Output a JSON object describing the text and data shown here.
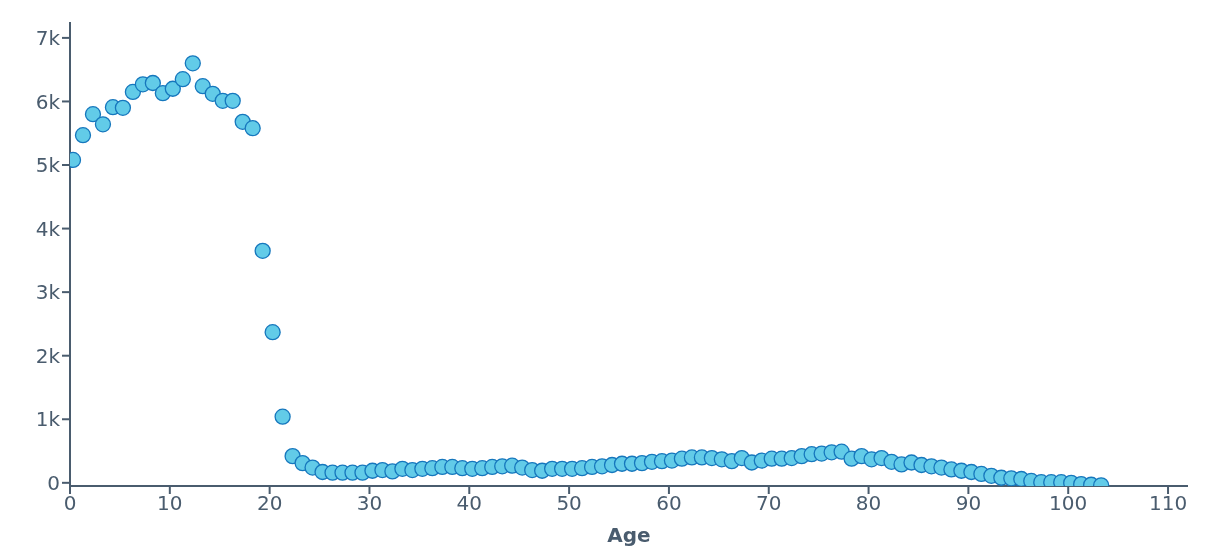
{
  "chart_data": {
    "type": "scatter",
    "xlabel": "Age",
    "color": "#62cbe8",
    "marker": "circle",
    "grid": false,
    "legend": false,
    "x": [
      0.3,
      1.3,
      2.3,
      3.3,
      4.3,
      5.3,
      6.3,
      7.3,
      8.3,
      9.3,
      10.3,
      11.3,
      12.3,
      13.3,
      14.3,
      15.3,
      16.3,
      17.3,
      18.3,
      19.3,
      20.3,
      21.3,
      22.3,
      23.3,
      24.3,
      25.3,
      26.3,
      27.3,
      28.3,
      29.3,
      30.3,
      31.3,
      32.3,
      33.3,
      34.3,
      35.3,
      36.3,
      37.3,
      38.3,
      39.3,
      40.3,
      41.3,
      42.3,
      43.3,
      44.3,
      45.3,
      46.3,
      47.3,
      48.3,
      49.3,
      50.3,
      51.3,
      52.3,
      53.3,
      54.3,
      55.3,
      56.3,
      57.3,
      58.3,
      59.3,
      60.3,
      61.3,
      62.3,
      63.3,
      64.3,
      65.3,
      66.3,
      67.3,
      68.3,
      69.3,
      70.3,
      71.3,
      72.3,
      73.3,
      74.3,
      75.3,
      76.3,
      77.3,
      78.3,
      79.3,
      80.3,
      81.3,
      82.3,
      83.3,
      84.3,
      85.3,
      86.3,
      87.3,
      88.3,
      89.3,
      90.3,
      91.3,
      92.3,
      93.3,
      94.3,
      95.3,
      96.3,
      97.3,
      98.3,
      99.3,
      100.3,
      101.3,
      102.3,
      103.3
    ],
    "values": [
      5080,
      5470,
      5800,
      5640,
      5910,
      5900,
      6150,
      6270,
      6290,
      6130,
      6200,
      6350,
      6600,
      6240,
      6120,
      6010,
      6010,
      5680,
      5580,
      3650,
      2370,
      1040,
      420,
      310,
      240,
      170,
      160,
      160,
      160,
      160,
      190,
      200,
      180,
      220,
      200,
      220,
      230,
      250,
      250,
      230,
      220,
      230,
      250,
      260,
      270,
      240,
      200,
      190,
      220,
      220,
      220,
      230,
      250,
      260,
      280,
      300,
      300,
      310,
      330,
      340,
      350,
      380,
      400,
      400,
      390,
      370,
      340,
      390,
      320,
      350,
      380,
      380,
      390,
      420,
      450,
      460,
      480,
      490,
      380,
      420,
      370,
      390,
      330,
      290,
      320,
      280,
      260,
      240,
      210,
      190,
      170,
      140,
      110,
      80,
      70,
      60,
      30,
      10,
      10,
      10,
      0,
      -20,
      -30,
      -40
    ],
    "xlim": [
      0,
      112
    ],
    "xticks": [
      0,
      10,
      20,
      30,
      40,
      50,
      60,
      70,
      80,
      90,
      100,
      110
    ],
    "ylim": [
      -50,
      7250
    ],
    "yticks": [
      {
        "value": 0,
        "label": "0"
      },
      {
        "value": 1000,
        "label": "1k"
      },
      {
        "value": 2000,
        "label": "2k"
      },
      {
        "value": 3000,
        "label": "3k"
      },
      {
        "value": 4000,
        "label": "4k"
      },
      {
        "value": 5000,
        "label": "5k"
      },
      {
        "value": 6000,
        "label": "6k"
      },
      {
        "value": 7000,
        "label": "7k"
      }
    ]
  }
}
